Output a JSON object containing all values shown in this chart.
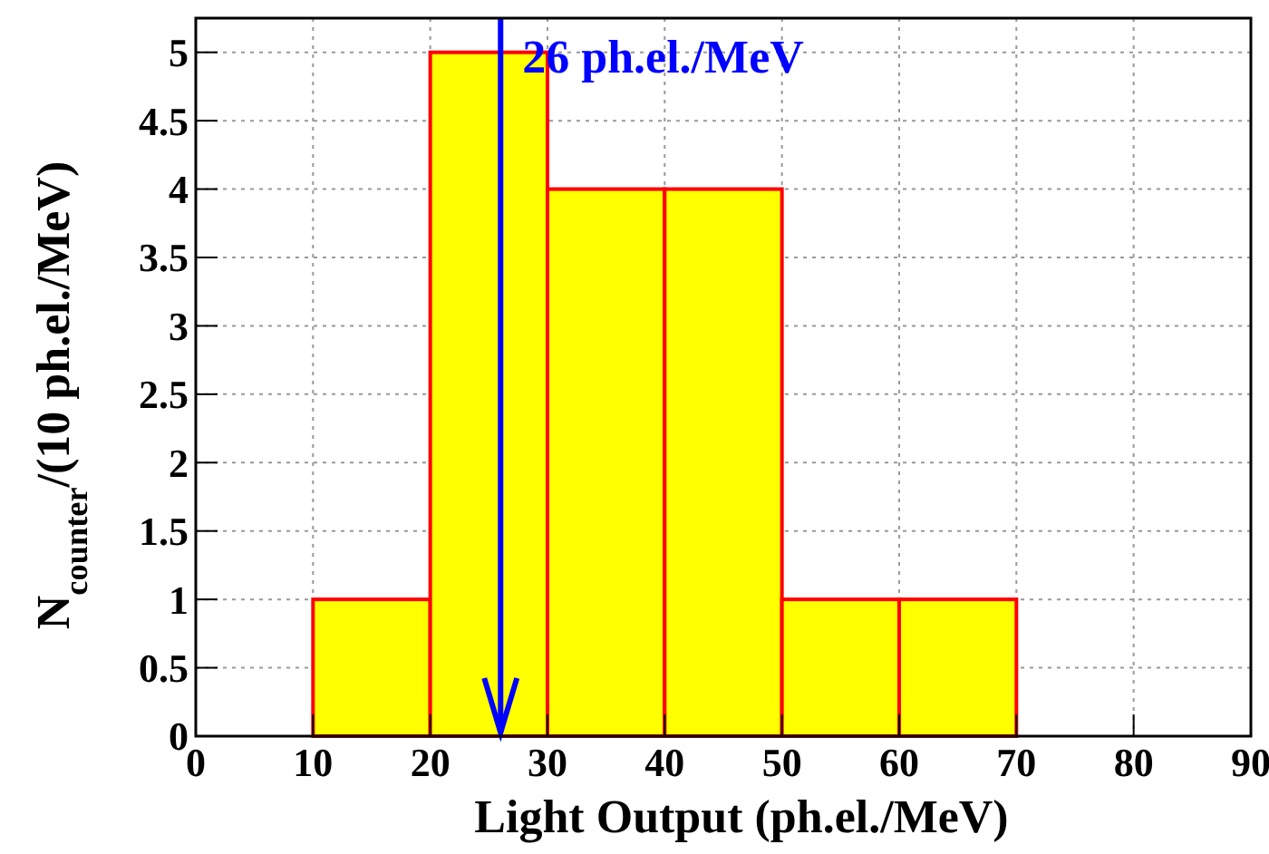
{
  "chart_data": {
    "type": "histogram",
    "xlabel": "Light Output (ph.el./MeV)",
    "ylabel": "N$_{counter}$/(10 ph.el./MeV)",
    "bins": [
      0,
      10,
      20,
      30,
      40,
      50,
      60,
      70,
      80,
      90
    ],
    "values": [
      0,
      1,
      5,
      4,
      4,
      1,
      1,
      0,
      0
    ],
    "color": "#ffff00",
    "xlim": [
      0,
      90
    ],
    "xticks": [
      0,
      10,
      20,
      30,
      40,
      50,
      60,
      70,
      80,
      90
    ],
    "ylim": [
      0,
      5.25
    ],
    "yticks": [
      0,
      {
        "value": 0.5,
        "label": "0.5"
      },
      1,
      {
        "value": 1.5,
        "label": "1.5"
      },
      2,
      {
        "value": 2.5,
        "label": "2.5"
      },
      3,
      {
        "value": 3.5,
        "label": "3.5"
      },
      4,
      {
        "value": 4.5,
        "label": "4.5"
      },
      5
    ],
    "grid": true,
    "ref_lines": [
      {
        "axis": "x",
        "value": 26,
        "label": "26 ph.el./MeV",
        "color": "#0000ff"
      }
    ]
  }
}
